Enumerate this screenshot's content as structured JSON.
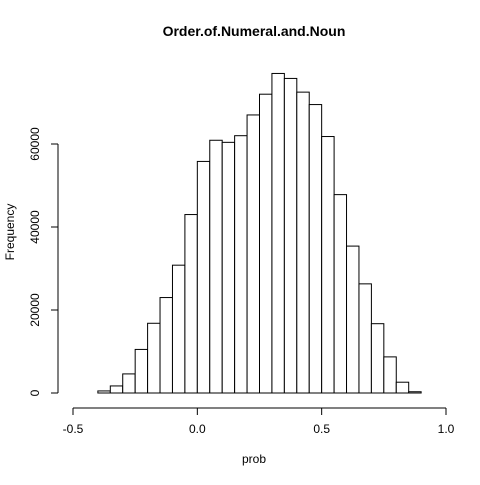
{
  "chart_data": {
    "type": "bar",
    "title": "Order.of.Numeral.and.Noun",
    "xlabel": "prob",
    "ylabel": "Frequency",
    "xlim": [
      -0.5,
      1.0
    ],
    "ylim": [
      0,
      78000
    ],
    "x_ticks": [
      -0.5,
      0.0,
      0.5,
      1.0
    ],
    "x_tick_labels": [
      "-0.5",
      "0.0",
      "0.5",
      "1.0"
    ],
    "y_ticks": [
      0,
      20000,
      40000,
      60000
    ],
    "y_tick_labels": [
      "0",
      "20000",
      "40000",
      "60000"
    ],
    "bin_width": 0.05,
    "bins": [
      {
        "x0": -0.4,
        "x1": -0.35,
        "value": 500
      },
      {
        "x0": -0.35,
        "x1": -0.3,
        "value": 1700
      },
      {
        "x0": -0.3,
        "x1": -0.25,
        "value": 4600
      },
      {
        "x0": -0.25,
        "x1": -0.2,
        "value": 10500
      },
      {
        "x0": -0.2,
        "x1": -0.15,
        "value": 16800
      },
      {
        "x0": -0.15,
        "x1": -0.1,
        "value": 23000
      },
      {
        "x0": -0.1,
        "x1": -0.05,
        "value": 30800
      },
      {
        "x0": -0.05,
        "x1": 0.0,
        "value": 43000
      },
      {
        "x0": 0.0,
        "x1": 0.05,
        "value": 55800
      },
      {
        "x0": 0.05,
        "x1": 0.1,
        "value": 60900
      },
      {
        "x0": 0.1,
        "x1": 0.15,
        "value": 60400
      },
      {
        "x0": 0.15,
        "x1": 0.2,
        "value": 62000
      },
      {
        "x0": 0.2,
        "x1": 0.25,
        "value": 67000
      },
      {
        "x0": 0.25,
        "x1": 0.3,
        "value": 72000
      },
      {
        "x0": 0.3,
        "x1": 0.35,
        "value": 77000
      },
      {
        "x0": 0.35,
        "x1": 0.4,
        "value": 75800
      },
      {
        "x0": 0.4,
        "x1": 0.45,
        "value": 72500
      },
      {
        "x0": 0.45,
        "x1": 0.5,
        "value": 69500
      },
      {
        "x0": 0.5,
        "x1": 0.55,
        "value": 61800
      },
      {
        "x0": 0.55,
        "x1": 0.6,
        "value": 47800
      },
      {
        "x0": 0.6,
        "x1": 0.65,
        "value": 35400
      },
      {
        "x0": 0.65,
        "x1": 0.7,
        "value": 26300
      },
      {
        "x0": 0.7,
        "x1": 0.75,
        "value": 16700
      },
      {
        "x0": 0.75,
        "x1": 0.8,
        "value": 8700
      },
      {
        "x0": 0.8,
        "x1": 0.85,
        "value": 2600
      },
      {
        "x0": 0.85,
        "x1": 0.9,
        "value": 300
      }
    ],
    "grid": false,
    "legend": "none"
  }
}
